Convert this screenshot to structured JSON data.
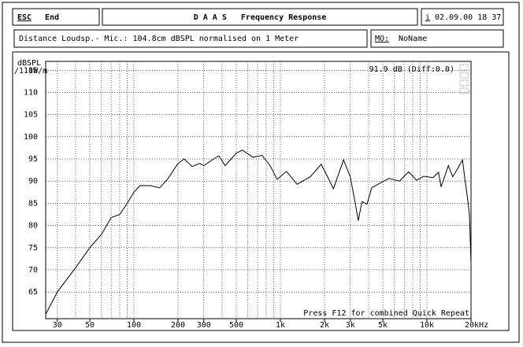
{
  "header": {
    "esc": "ESC",
    "end": "End",
    "title": "D A A S   Frequency Response",
    "info_key": "i",
    "datetime": "02.09.00 18 37"
  },
  "info": {
    "description": "Distance Loudsp.- Mic.: 104.8cm dBSPL normalised on 1 Meter",
    "mo": "MO:",
    "name": "NoName"
  },
  "chart_data": {
    "type": "line",
    "y_label": "dBSPL",
    "y_unit": "/1.0W/m",
    "annotation": "91.9 dB (Diff:0.0)",
    "footer_note": "Press F12 for combined Quick Repeat",
    "x_scale": "log",
    "grid": true,
    "minor_grid": true,
    "xlim": [
      25,
      20000
    ],
    "ylim": [
      59,
      117
    ],
    "xticks": [
      30,
      50,
      100,
      200,
      300,
      500,
      {
        "value": 1000,
        "label": "1k"
      },
      {
        "value": 2000,
        "label": "2k"
      },
      {
        "value": 3000,
        "label": "3k"
      },
      {
        "value": 5000,
        "label": "5k"
      },
      {
        "value": 10000,
        "label": "10k"
      },
      {
        "value": 20000,
        "label": "20kHz"
      }
    ],
    "yticks": [
      65,
      70,
      75,
      80,
      85,
      90,
      95,
      100,
      105,
      110,
      115
    ],
    "x": [
      25,
      30,
      40,
      50,
      60,
      70,
      80,
      90,
      100,
      110,
      130,
      150,
      170,
      200,
      220,
      250,
      280,
      300,
      350,
      380,
      420,
      500,
      550,
      650,
      750,
      850,
      950,
      1100,
      1300,
      1600,
      1900,
      2100,
      2300,
      2700,
      3000,
      3200,
      3400,
      3600,
      3900,
      4200,
      4700,
      5500,
      6500,
      7500,
      8500,
      9500,
      11000,
      12000,
      12500,
      14000,
      15000,
      16000,
      17500,
      18000,
      19000,
      19500,
      20000
    ],
    "series": [
      {
        "color": "#000000",
        "values": [
          60,
          65,
          70.5,
          75,
          78,
          81.8,
          82.5,
          85,
          87.5,
          89,
          89,
          88.5,
          90.5,
          94,
          95,
          93.3,
          94,
          93.5,
          95,
          95.7,
          93.5,
          96.3,
          97,
          95.4,
          95.8,
          93.5,
          90.4,
          92.2,
          89.3,
          91,
          93.8,
          91,
          88.3,
          94.8,
          91,
          86,
          81.1,
          85.4,
          84.8,
          88.5,
          89.4,
          90.6,
          90,
          92.1,
          90.2,
          91.1,
          90.8,
          92,
          88.7,
          93.5,
          91,
          92.5,
          94.8,
          91.5,
          85.7,
          82.4,
          71.5
        ]
      }
    ]
  }
}
